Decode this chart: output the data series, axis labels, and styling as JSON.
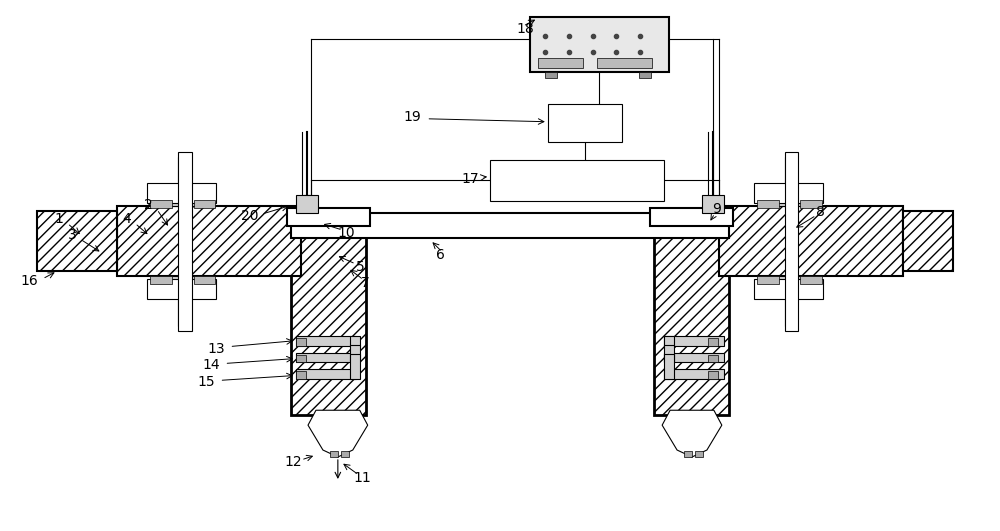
{
  "bg_color": "#ffffff",
  "lc": "#000000",
  "gray1": "#c8c8c8",
  "gray2": "#aaaaaa",
  "gray3": "#888888",
  "label_fs": 10,
  "figw": 10.0,
  "figh": 5.31,
  "dpi": 100
}
